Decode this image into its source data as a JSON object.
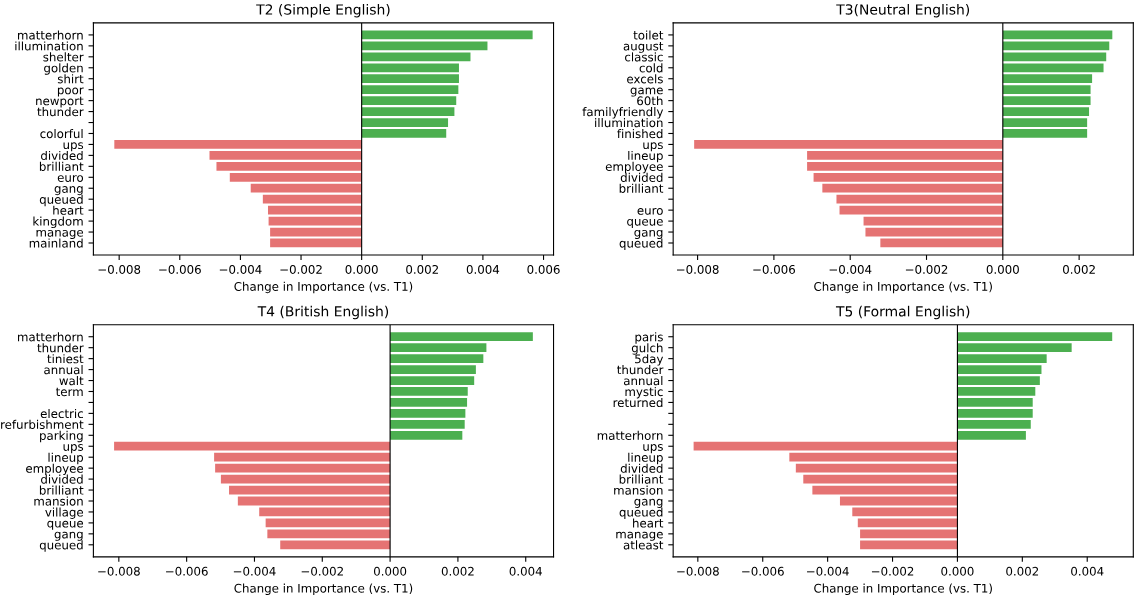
{
  "chart_data": [
    {
      "type": "bar",
      "orientation": "horizontal",
      "title": "T2 (Simple English)",
      "xlabel": "Change in Importance (vs. T1)",
      "categories": [
        "matterhorn",
        "illumination",
        "shelter",
        "golden",
        "shirt",
        "poor",
        "newport",
        "thunder",
        null,
        "colorful",
        "ups",
        "divided",
        "brilliant",
        "euro",
        "gang",
        "queued",
        "heart",
        "kingdom",
        "manage",
        "mainland"
      ],
      "values": [
        0.00564,
        0.00415,
        0.00359,
        0.00321,
        0.00321,
        0.00319,
        0.00312,
        0.00306,
        0.00285,
        0.00279,
        -0.00816,
        -0.00502,
        -0.00479,
        -0.00435,
        -0.00366,
        -0.00326,
        -0.00309,
        -0.00307,
        -0.00302,
        -0.00302
      ],
      "colors": [
        "#4caf50",
        "#4caf50",
        "#4caf50",
        "#4caf50",
        "#4caf50",
        "#4caf50",
        "#4caf50",
        "#4caf50",
        "#4caf50",
        "#4caf50",
        "#e57373",
        "#e57373",
        "#e57373",
        "#e57373",
        "#e57373",
        "#e57373",
        "#e57373",
        "#e57373",
        "#e57373",
        "#e57373"
      ],
      "xlim": [
        -0.00885,
        0.00633
      ],
      "xticks": [
        {
          "value": -0.008,
          "label": "−0.008"
        },
        {
          "value": -0.006,
          "label": "−0.006"
        },
        {
          "value": -0.004,
          "label": "−0.004"
        },
        {
          "value": -0.002,
          "label": "−0.002"
        },
        {
          "value": 0,
          "label": "0.000"
        },
        0.002,
        0.004,
        0.006
      ],
      "ref_lines": [
        {
          "axis": "x",
          "value": 0,
          "color": "#000000"
        }
      ]
    },
    {
      "type": "bar",
      "orientation": "horizontal",
      "title": "T3(Neutral English)",
      "xlabel": "Change in Importance (vs. T1)",
      "categories": [
        "toilet",
        "august",
        "classic",
        "cold",
        "excels",
        "game",
        "60th",
        "familyfriendly",
        "illumination",
        "finished",
        "ups",
        "lineup",
        "employee",
        "divided",
        "brilliant",
        null,
        "euro",
        "queue",
        "gang",
        "queued"
      ],
      "values": [
        0.00287,
        0.00279,
        0.00271,
        0.00264,
        0.00234,
        0.0023,
        0.0023,
        0.00226,
        0.00221,
        0.00221,
        -0.00809,
        -0.00513,
        -0.00513,
        -0.00496,
        -0.00473,
        -0.00436,
        -0.00428,
        -0.00365,
        -0.0036,
        -0.00321
      ],
      "colors": [
        "#4caf50",
        "#4caf50",
        "#4caf50",
        "#4caf50",
        "#4caf50",
        "#4caf50",
        "#4caf50",
        "#4caf50",
        "#4caf50",
        "#4caf50",
        "#e57373",
        "#e57373",
        "#e57373",
        "#e57373",
        "#e57373",
        "#e57373",
        "#e57373",
        "#e57373",
        "#e57373",
        "#e57373"
      ],
      "xlim": [
        -0.00864,
        0.00342
      ],
      "xticks": [
        {
          "value": -0.008,
          "label": "−0.008"
        },
        {
          "value": -0.006,
          "label": "−0.006"
        },
        {
          "value": -0.004,
          "label": "−0.004"
        },
        {
          "value": -0.002,
          "label": "−0.002"
        },
        {
          "value": 0,
          "label": "0.000"
        },
        0.002
      ],
      "ref_lines": [
        {
          "axis": "x",
          "value": 0,
          "color": "#000000"
        }
      ]
    },
    {
      "type": "bar",
      "orientation": "horizontal",
      "title": "T4 (British English)",
      "xlabel": "Change in Importance (vs. T1)",
      "categories": [
        "matterhorn",
        "thunder",
        "tiniest",
        "annual",
        "walt",
        "term",
        null,
        "electric",
        "refurbishment",
        "parking",
        "ups",
        "lineup",
        "employee",
        "divided",
        "brilliant",
        "mansion",
        "village",
        "queue",
        "gang",
        "queued"
      ],
      "values": [
        0.00421,
        0.00284,
        0.00275,
        0.00253,
        0.00248,
        0.00229,
        0.00227,
        0.00222,
        0.0022,
        0.00213,
        -0.00814,
        -0.00519,
        -0.00516,
        -0.00499,
        -0.00475,
        -0.00449,
        -0.00386,
        -0.00367,
        -0.00362,
        -0.00324
      ],
      "colors": [
        "#4caf50",
        "#4caf50",
        "#4caf50",
        "#4caf50",
        "#4caf50",
        "#4caf50",
        "#4caf50",
        "#4caf50",
        "#4caf50",
        "#4caf50",
        "#e57373",
        "#e57373",
        "#e57373",
        "#e57373",
        "#e57373",
        "#e57373",
        "#e57373",
        "#e57373",
        "#e57373",
        "#e57373"
      ],
      "xlim": [
        -0.00875,
        0.00482
      ],
      "xticks": [
        {
          "value": -0.008,
          "label": "−0.008"
        },
        {
          "value": -0.006,
          "label": "−0.006"
        },
        {
          "value": -0.004,
          "label": "−0.004"
        },
        {
          "value": -0.002,
          "label": "−0.002"
        },
        {
          "value": 0,
          "label": "0.000"
        },
        0.002,
        0.004
      ],
      "ref_lines": [
        {
          "axis": "x",
          "value": 0,
          "color": "#000000"
        }
      ]
    },
    {
      "type": "bar",
      "orientation": "horizontal",
      "title": "T5 (Formal English)",
      "xlabel": "Change in Importance (vs. T1)",
      "categories": [
        "paris",
        "gulch",
        "5day",
        "thunder",
        "annual",
        "mystic",
        "returned",
        null,
        null,
        "matterhorn",
        "ups",
        "lineup",
        "divided",
        "brilliant",
        "mansion",
        "gang",
        "queued",
        "heart",
        "manage",
        "atleast"
      ],
      "values": [
        0.00477,
        0.00352,
        0.00275,
        0.00259,
        0.00254,
        0.0024,
        0.00232,
        0.00232,
        0.00226,
        0.00211,
        -0.00813,
        -0.00518,
        -0.00498,
        -0.00475,
        -0.00447,
        -0.00362,
        -0.00324,
        -0.00307,
        -0.003,
        -0.003
      ],
      "colors": [
        "#4caf50",
        "#4caf50",
        "#4caf50",
        "#4caf50",
        "#4caf50",
        "#4caf50",
        "#4caf50",
        "#4caf50",
        "#4caf50",
        "#4caf50",
        "#e57373",
        "#e57373",
        "#e57373",
        "#e57373",
        "#e57373",
        "#e57373",
        "#e57373",
        "#e57373",
        "#e57373",
        "#e57373"
      ],
      "xlim": [
        -0.00876,
        0.00542
      ],
      "xticks": [
        {
          "value": -0.008,
          "label": "−0.008"
        },
        {
          "value": -0.006,
          "label": "−0.006"
        },
        {
          "value": -0.004,
          "label": "−0.004"
        },
        {
          "value": -0.002,
          "label": "−0.002"
        },
        {
          "value": 0,
          "label": "0.000"
        },
        0.002,
        0.004
      ],
      "ref_lines": [
        {
          "axis": "x",
          "value": 0,
          "color": "#000000"
        }
      ]
    }
  ]
}
